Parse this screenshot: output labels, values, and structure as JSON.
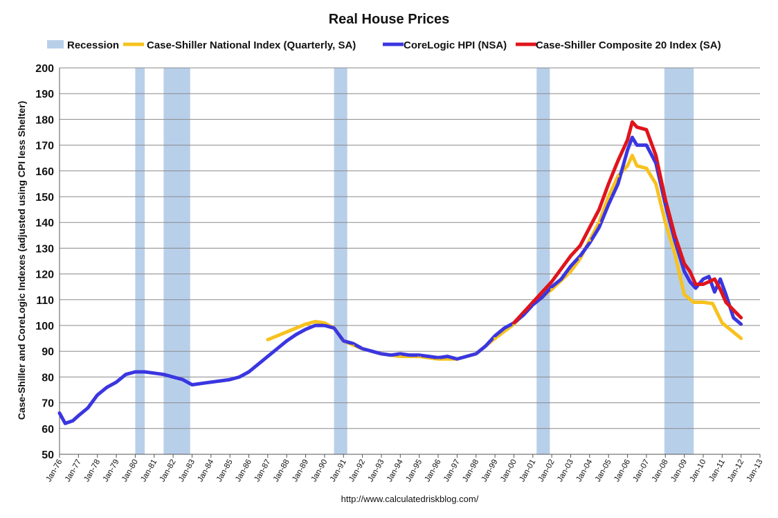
{
  "chart_data": {
    "type": "line",
    "title": "Real House Prices",
    "ylabel": "Case-Shiller and CoreLogic Indexes (adjusted using CPI less Shelter)",
    "xlabel": "",
    "source": "http://www.calculatedriskblog.com/",
    "ylim": [
      50,
      200
    ],
    "yticks": [
      50,
      60,
      70,
      80,
      90,
      100,
      110,
      120,
      130,
      140,
      150,
      160,
      170,
      180,
      190,
      200
    ],
    "xlim": [
      1976,
      2013
    ],
    "xticks": [
      "Jan-76",
      "Jan-77",
      "Jan-78",
      "Jan-79",
      "Jan-80",
      "Jan-81",
      "Jan-82",
      "Jan-83",
      "Jan-84",
      "Jan-85",
      "Jan-86",
      "Jan-87",
      "Jan-88",
      "Jan-89",
      "Jan-90",
      "Jan-91",
      "Jan-92",
      "Jan-93",
      "Jan-94",
      "Jan-95",
      "Jan-96",
      "Jan-97",
      "Jan-98",
      "Jan-99",
      "Jan-00",
      "Jan-01",
      "Jan-02",
      "Jan-03",
      "Jan-04",
      "Jan-05",
      "Jan-06",
      "Jan-07",
      "Jan-08",
      "Jan-09",
      "Jan-10",
      "Jan-11",
      "Jan-12",
      "Jan-13"
    ],
    "grid": true,
    "legend_position": "top",
    "legend": [
      {
        "name": "Recession",
        "color": "#b8cfea",
        "kind": "band"
      },
      {
        "name": "Case-Shiller National Index (Quarterly, SA)",
        "color": "#f7c21e",
        "kind": "line"
      },
      {
        "name": "CoreLogic HPI (NSA)",
        "color": "#3a36e0",
        "kind": "line"
      },
      {
        "name": "Case-Shiller Composite 20 Index (SA)",
        "color": "#e0141c",
        "kind": "line"
      }
    ],
    "recessions": [
      [
        1980.0,
        1980.5
      ],
      [
        1981.5,
        1982.9
      ],
      [
        1990.5,
        1991.2
      ],
      [
        2001.2,
        2001.9
      ],
      [
        2007.95,
        2009.5
      ]
    ],
    "series": [
      {
        "name": "Case-Shiller National Index (Quarterly, SA)",
        "color": "#f7c21e",
        "x": [
          1987.0,
          1987.5,
          1988.0,
          1988.5,
          1989.0,
          1989.5,
          1990.0,
          1990.5,
          1991.0,
          1991.5,
          1992.0,
          1993.0,
          1994.0,
          1995.0,
          1996.0,
          1997.0,
          1998.0,
          1999.0,
          2000.0,
          2001.0,
          2002.0,
          2003.0,
          2003.5,
          2004.0,
          2004.5,
          2005.0,
          2005.5,
          2006.0,
          2006.25,
          2006.5,
          2007.0,
          2007.5,
          2008.0,
          2008.5,
          2009.0,
          2009.5,
          2010.0,
          2010.5,
          2011.0,
          2011.5,
          2012.0
        ],
        "y": [
          94.5,
          96,
          97.5,
          99,
          100.5,
          101.5,
          101,
          99,
          94,
          92.5,
          91,
          89,
          88,
          88,
          87,
          87,
          89,
          95,
          100.5,
          108,
          114,
          121,
          126,
          133,
          140,
          150,
          158,
          162,
          166,
          162,
          161,
          155,
          140,
          128,
          112,
          109,
          109,
          108.5,
          101,
          98,
          95
        ]
      },
      {
        "name": "CoreLogic HPI (NSA)",
        "color": "#3a36e0",
        "x": [
          1976.0,
          1976.3,
          1976.7,
          1977.0,
          1977.5,
          1978.0,
          1978.5,
          1979.0,
          1979.5,
          1980.0,
          1980.5,
          1981.0,
          1981.5,
          1982.0,
          1982.5,
          1983.0,
          1983.5,
          1984.0,
          1984.5,
          1985.0,
          1985.5,
          1986.0,
          1986.5,
          1987.0,
          1987.5,
          1988.0,
          1988.5,
          1989.0,
          1989.5,
          1990.0,
          1990.5,
          1991.0,
          1991.5,
          1992.0,
          1992.5,
          1993.0,
          1993.5,
          1994.0,
          1994.5,
          1995.0,
          1995.5,
          1996.0,
          1996.5,
          1997.0,
          1997.5,
          1998.0,
          1998.5,
          1999.0,
          1999.5,
          2000.0,
          2000.5,
          2001.0,
          2001.5,
          2002.0,
          2002.5,
          2003.0,
          2003.5,
          2004.0,
          2004.5,
          2005.0,
          2005.5,
          2006.0,
          2006.25,
          2006.5,
          2007.0,
          2007.5,
          2008.0,
          2008.5,
          2009.0,
          2009.3,
          2009.6,
          2010.0,
          2010.3,
          2010.6,
          2010.9,
          2011.2,
          2011.6,
          2012.0
        ],
        "y": [
          66,
          62,
          63,
          65,
          68,
          73,
          76,
          78,
          81,
          82,
          82,
          81.5,
          81,
          80,
          79,
          77,
          77.5,
          78,
          78.5,
          79,
          80,
          82,
          85,
          88,
          91,
          94,
          96.5,
          98.5,
          100,
          100,
          99,
          94,
          93,
          91,
          90,
          89,
          88.5,
          89,
          88.5,
          88.5,
          88,
          87.5,
          88,
          87,
          88,
          89,
          92,
          96,
          99,
          101,
          104,
          108,
          111,
          115,
          118,
          123,
          127,
          132,
          138,
          147,
          155,
          168,
          173,
          170,
          170,
          163,
          147,
          133,
          121,
          117,
          114.5,
          118,
          119,
          113,
          118,
          112,
          103,
          100.5
        ]
      },
      {
        "name": "Case-Shiller Composite 20 Index (SA)",
        "color": "#e0141c",
        "x": [
          2000.0,
          2000.5,
          2001.0,
          2001.5,
          2002.0,
          2002.5,
          2003.0,
          2003.5,
          2004.0,
          2004.5,
          2005.0,
          2005.5,
          2006.0,
          2006.25,
          2006.5,
          2007.0,
          2007.5,
          2008.0,
          2008.5,
          2009.0,
          2009.3,
          2009.6,
          2010.0,
          2010.3,
          2010.6,
          2010.9,
          2011.2,
          2011.6,
          2012.0
        ],
        "y": [
          101,
          105,
          109,
          113,
          117,
          122,
          127,
          131,
          138,
          145,
          155,
          164,
          172,
          179,
          177,
          176,
          166,
          149,
          135,
          124,
          121,
          116,
          116,
          117,
          118,
          114,
          109,
          106,
          103
        ]
      }
    ]
  }
}
